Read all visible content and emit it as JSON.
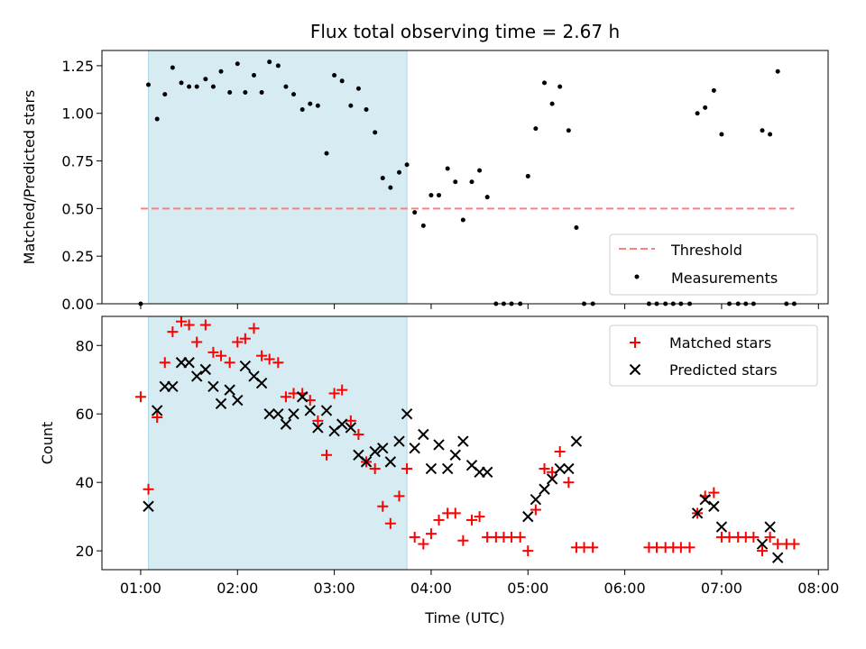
{
  "chart_data": [
    {
      "type": "scatter",
      "title": "Flux total observing time = 2.67 h",
      "ylabel": "Matched/Predicted stars",
      "xlabel": "",
      "ylim": [
        0,
        1.33
      ],
      "yticks": [
        "0.00",
        "0.25",
        "0.50",
        "0.75",
        "1.00",
        "1.25"
      ],
      "grid": false,
      "legend_placement": "lower-right",
      "legend": [
        {
          "label": "Threshold",
          "style": "dashed-line",
          "color": "#ff7f7f"
        },
        {
          "label": "Measurements",
          "style": "dot",
          "color": "#000000"
        }
      ],
      "threshold": {
        "y": 0.5,
        "x_start": 1.0,
        "x_end": 7.75
      },
      "shaded_span": {
        "x_start": 1.08,
        "x_end": 3.75,
        "color": "#add8e6"
      },
      "series": [
        {
          "name": "Measurements",
          "color": "#000000",
          "points": [
            [
              1.0,
              0.0
            ],
            [
              1.08,
              1.15
            ],
            [
              1.17,
              0.97
            ],
            [
              1.25,
              1.1
            ],
            [
              1.33,
              1.24
            ],
            [
              1.42,
              1.16
            ],
            [
              1.5,
              1.14
            ],
            [
              1.58,
              1.14
            ],
            [
              1.67,
              1.18
            ],
            [
              1.75,
              1.14
            ],
            [
              1.83,
              1.22
            ],
            [
              1.92,
              1.11
            ],
            [
              2.0,
              1.26
            ],
            [
              2.08,
              1.11
            ],
            [
              2.17,
              1.2
            ],
            [
              2.25,
              1.11
            ],
            [
              2.33,
              1.27
            ],
            [
              2.42,
              1.25
            ],
            [
              2.5,
              1.14
            ],
            [
              2.58,
              1.1
            ],
            [
              2.67,
              1.02
            ],
            [
              2.75,
              1.05
            ],
            [
              2.83,
              1.04
            ],
            [
              2.92,
              0.79
            ],
            [
              3.0,
              1.2
            ],
            [
              3.08,
              1.17
            ],
            [
              3.17,
              1.04
            ],
            [
              3.25,
              1.13
            ],
            [
              3.33,
              1.02
            ],
            [
              3.42,
              0.9
            ],
            [
              3.5,
              0.66
            ],
            [
              3.58,
              0.61
            ],
            [
              3.67,
              0.69
            ],
            [
              3.75,
              0.73
            ],
            [
              3.83,
              0.48
            ],
            [
              3.92,
              0.41
            ],
            [
              4.0,
              0.57
            ],
            [
              4.08,
              0.57
            ],
            [
              4.17,
              0.71
            ],
            [
              4.25,
              0.64
            ],
            [
              4.33,
              0.44
            ],
            [
              4.42,
              0.64
            ],
            [
              4.5,
              0.7
            ],
            [
              4.58,
              0.56
            ],
            [
              4.67,
              0.0
            ],
            [
              4.75,
              0.0
            ],
            [
              4.83,
              0.0
            ],
            [
              4.92,
              0.0
            ],
            [
              5.0,
              0.67
            ],
            [
              5.08,
              0.92
            ],
            [
              5.17,
              1.16
            ],
            [
              5.25,
              1.05
            ],
            [
              5.33,
              1.14
            ],
            [
              5.42,
              0.91
            ],
            [
              5.5,
              0.4
            ],
            [
              5.58,
              0.0
            ],
            [
              5.67,
              0.0
            ],
            [
              6.25,
              0.0
            ],
            [
              6.33,
              0.0
            ],
            [
              6.42,
              0.0
            ],
            [
              6.5,
              0.0
            ],
            [
              6.58,
              0.0
            ],
            [
              6.67,
              0.0
            ],
            [
              6.75,
              1.0
            ],
            [
              6.83,
              1.03
            ],
            [
              6.92,
              1.12
            ],
            [
              7.0,
              0.89
            ],
            [
              7.08,
              0.0
            ],
            [
              7.17,
              0.0
            ],
            [
              7.25,
              0.0
            ],
            [
              7.33,
              0.0
            ],
            [
              7.42,
              0.91
            ],
            [
              7.5,
              0.89
            ],
            [
              7.58,
              1.22
            ],
            [
              7.67,
              0.0
            ],
            [
              7.75,
              0.0
            ]
          ]
        }
      ]
    },
    {
      "type": "scatter",
      "title": "",
      "ylabel": "Count",
      "xlabel": "Time (UTC)",
      "xlim": [
        0.6,
        8.1
      ],
      "xticks": [
        {
          "v": 1,
          "label": "01:00"
        },
        {
          "v": 2,
          "label": "02:00"
        },
        {
          "v": 3,
          "label": "03:00"
        },
        {
          "v": 4,
          "label": "04:00"
        },
        {
          "v": 5,
          "label": "05:00"
        },
        {
          "v": 6,
          "label": "06:00"
        },
        {
          "v": 7,
          "label": "07:00"
        },
        {
          "v": 8,
          "label": "08:00"
        }
      ],
      "ylim": [
        14.5,
        88.5
      ],
      "yticks": [
        "20",
        "40",
        "60",
        "80"
      ],
      "grid": false,
      "legend_placement": "top-right",
      "legend": [
        {
          "label": "Matched stars",
          "marker": "+",
          "color": "#ff0000"
        },
        {
          "label": "Predicted stars",
          "marker": "x",
          "color": "#000000"
        }
      ],
      "shaded_span": {
        "x_start": 1.08,
        "x_end": 3.75,
        "color": "#add8e6"
      },
      "series": [
        {
          "name": "Matched stars",
          "marker": "+",
          "color": "#ff0000",
          "points": [
            [
              1.0,
              65
            ],
            [
              1.08,
              38
            ],
            [
              1.17,
              59
            ],
            [
              1.25,
              75
            ],
            [
              1.33,
              84
            ],
            [
              1.42,
              87
            ],
            [
              1.5,
              86
            ],
            [
              1.58,
              81
            ],
            [
              1.67,
              86
            ],
            [
              1.75,
              78
            ],
            [
              1.83,
              77
            ],
            [
              1.92,
              75
            ],
            [
              2.0,
              81
            ],
            [
              2.08,
              82
            ],
            [
              2.17,
              85
            ],
            [
              2.25,
              77
            ],
            [
              2.33,
              76
            ],
            [
              2.42,
              75
            ],
            [
              2.5,
              65
            ],
            [
              2.58,
              66
            ],
            [
              2.67,
              66
            ],
            [
              2.75,
              64
            ],
            [
              2.83,
              58
            ],
            [
              2.92,
              48
            ],
            [
              3.0,
              66
            ],
            [
              3.08,
              67
            ],
            [
              3.17,
              58
            ],
            [
              3.25,
              54
            ],
            [
              3.33,
              46
            ],
            [
              3.42,
              44
            ],
            [
              3.5,
              33
            ],
            [
              3.58,
              28
            ],
            [
              3.67,
              36
            ],
            [
              3.75,
              44
            ],
            [
              3.83,
              24
            ],
            [
              3.92,
              22
            ],
            [
              4.0,
              25
            ],
            [
              4.08,
              29
            ],
            [
              4.17,
              31
            ],
            [
              4.25,
              31
            ],
            [
              4.33,
              23
            ],
            [
              4.42,
              29
            ],
            [
              4.5,
              30
            ],
            [
              4.58,
              24
            ],
            [
              4.67,
              24
            ],
            [
              4.75,
              24
            ],
            [
              4.83,
              24
            ],
            [
              4.92,
              24
            ],
            [
              5.0,
              20
            ],
            [
              5.08,
              32
            ],
            [
              5.17,
              44
            ],
            [
              5.25,
              43
            ],
            [
              5.33,
              49
            ],
            [
              5.42,
              40
            ],
            [
              5.5,
              21
            ],
            [
              5.58,
              21
            ],
            [
              5.67,
              21
            ],
            [
              6.25,
              21
            ],
            [
              6.33,
              21
            ],
            [
              6.42,
              21
            ],
            [
              6.5,
              21
            ],
            [
              6.58,
              21
            ],
            [
              6.67,
              21
            ],
            [
              6.75,
              31
            ],
            [
              6.83,
              36
            ],
            [
              6.92,
              37
            ],
            [
              7.0,
              24
            ],
            [
              7.08,
              24
            ],
            [
              7.17,
              24
            ],
            [
              7.25,
              24
            ],
            [
              7.33,
              24
            ],
            [
              7.42,
              20
            ],
            [
              7.5,
              24
            ],
            [
              7.58,
              22
            ],
            [
              7.67,
              22
            ],
            [
              7.75,
              22
            ]
          ]
        },
        {
          "name": "Predicted stars",
          "marker": "x",
          "color": "#000000",
          "points": [
            [
              1.08,
              33
            ],
            [
              1.17,
              61
            ],
            [
              1.25,
              68
            ],
            [
              1.33,
              68
            ],
            [
              1.42,
              75
            ],
            [
              1.5,
              75
            ],
            [
              1.58,
              71
            ],
            [
              1.67,
              73
            ],
            [
              1.75,
              68
            ],
            [
              1.83,
              63
            ],
            [
              1.92,
              67
            ],
            [
              2.0,
              64
            ],
            [
              2.08,
              74
            ],
            [
              2.17,
              71
            ],
            [
              2.25,
              69
            ],
            [
              2.33,
              60
            ],
            [
              2.42,
              60
            ],
            [
              2.5,
              57
            ],
            [
              2.58,
              60
            ],
            [
              2.67,
              65
            ],
            [
              2.75,
              61
            ],
            [
              2.83,
              56
            ],
            [
              2.92,
              61
            ],
            [
              3.0,
              55
            ],
            [
              3.08,
              57
            ],
            [
              3.17,
              56
            ],
            [
              3.25,
              48
            ],
            [
              3.33,
              46
            ],
            [
              3.42,
              49
            ],
            [
              3.5,
              50
            ],
            [
              3.58,
              46
            ],
            [
              3.67,
              52
            ],
            [
              3.75,
              60
            ],
            [
              3.83,
              50
            ],
            [
              3.92,
              54
            ],
            [
              4.0,
              44
            ],
            [
              4.08,
              51
            ],
            [
              4.17,
              44
            ],
            [
              4.25,
              48
            ],
            [
              4.33,
              52
            ],
            [
              4.42,
              45
            ],
            [
              4.5,
              43
            ],
            [
              4.58,
              43
            ],
            [
              5.0,
              30
            ],
            [
              5.08,
              35
            ],
            [
              5.17,
              38
            ],
            [
              5.25,
              41
            ],
            [
              5.33,
              44
            ],
            [
              5.42,
              44
            ],
            [
              5.5,
              52
            ],
            [
              6.75,
              31
            ],
            [
              6.83,
              35
            ],
            [
              6.92,
              33
            ],
            [
              7.0,
              27
            ],
            [
              7.42,
              22
            ],
            [
              7.5,
              27
            ],
            [
              7.58,
              18
            ]
          ]
        }
      ]
    }
  ]
}
